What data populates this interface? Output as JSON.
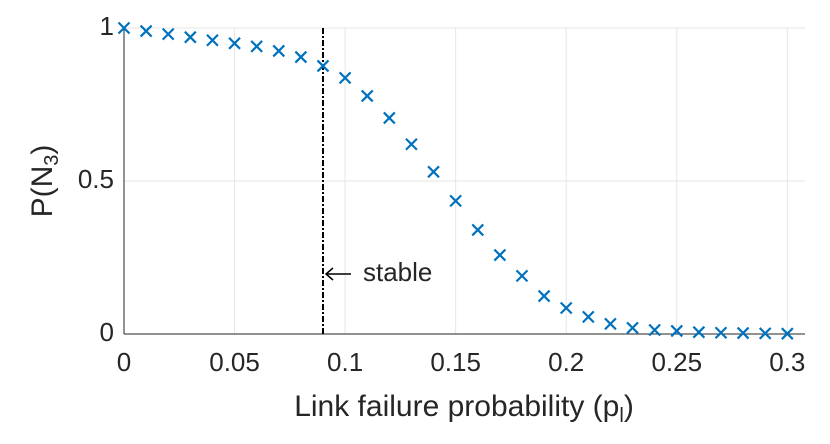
{
  "chart_data": {
    "type": "scatter",
    "marker": "x",
    "color": "#0072bd",
    "x": [
      0,
      0.01,
      0.02,
      0.03,
      0.04,
      0.05,
      0.06,
      0.07,
      0.08,
      0.09,
      0.1,
      0.11,
      0.12,
      0.13,
      0.14,
      0.15,
      0.16,
      0.17,
      0.18,
      0.19,
      0.2,
      0.21,
      0.22,
      0.23,
      0.24,
      0.25,
      0.26,
      0.27,
      0.28,
      0.29,
      0.3
    ],
    "values": [
      1.0,
      0.99,
      0.98,
      0.97,
      0.96,
      0.95,
      0.94,
      0.925,
      0.905,
      0.876,
      0.837,
      0.778,
      0.706,
      0.62,
      0.53,
      0.435,
      0.34,
      0.258,
      0.19,
      0.124,
      0.085,
      0.056,
      0.033,
      0.02,
      0.013,
      0.01,
      0.006,
      0.004,
      0.003,
      0.002,
      0.001
    ],
    "xlim": [
      0,
      0.308
    ],
    "ylim": [
      0,
      1
    ],
    "xticks": [
      0,
      0.05,
      0.1,
      0.15,
      0.2,
      0.25,
      0.3
    ],
    "yticks": [
      0,
      0.5,
      1
    ],
    "grid": true,
    "x_label": [
      "Link failure probability (p",
      "l",
      ")"
    ],
    "y_label": [
      "P(N",
      "3",
      ")"
    ],
    "vline": {
      "x": 0.09,
      "label": "stable"
    }
  }
}
